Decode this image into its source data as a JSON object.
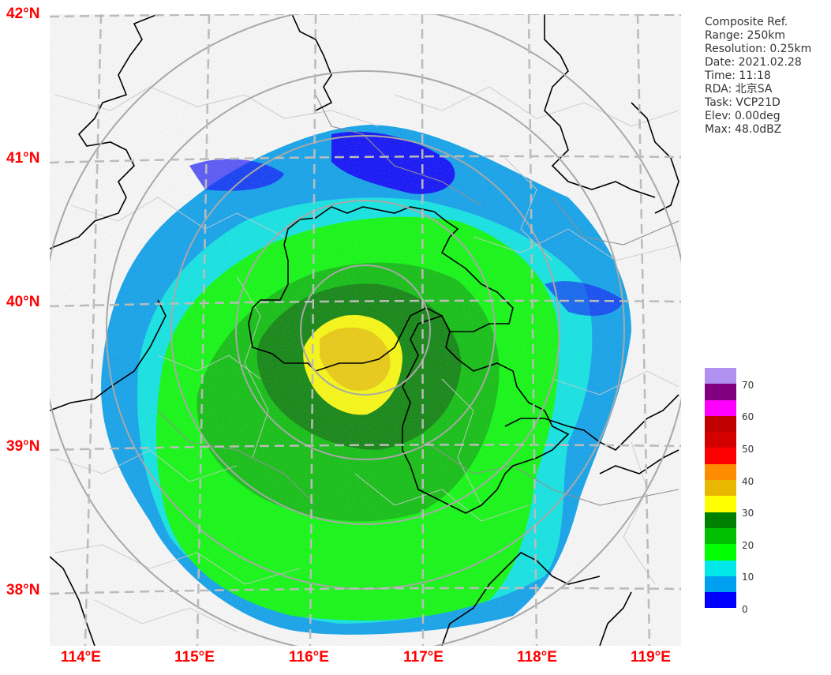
{
  "map": {
    "lat_labels": [
      "42°N",
      "41°N",
      "40°N",
      "39°N",
      "38°N"
    ],
    "lon_labels": [
      "114°E",
      "115°E",
      "116°E",
      "117°E",
      "118°E",
      "119°E"
    ]
  },
  "info": {
    "product": "Composite Ref.",
    "range": "Range: 250km",
    "resolution": "Resolution: 0.25km",
    "date": "Date: 2021.02.28",
    "time": "Time: 11:18",
    "rda": "RDA: 北京SA",
    "task": "Task: VCP21D",
    "elev": "Elev: 0.00deg",
    "max": "Max: 48.0dBZ"
  },
  "colorbar": {
    "colors": [
      "#b090f0",
      "#800080",
      "#ff00ff",
      "#c00000",
      "#d40000",
      "#ff0000",
      "#ff8c00",
      "#e8b800",
      "#ffff00",
      "#008000",
      "#00c000",
      "#00ff00",
      "#00e8e8",
      "#00a0f0",
      "#0000ff"
    ],
    "ticks": [
      "70",
      "60",
      "50",
      "40",
      "30",
      "20",
      "10",
      "0"
    ]
  },
  "colors": {
    "label": "#ff0000",
    "grid": "#bbbbbb",
    "range_ring": "#a8a8a8"
  }
}
